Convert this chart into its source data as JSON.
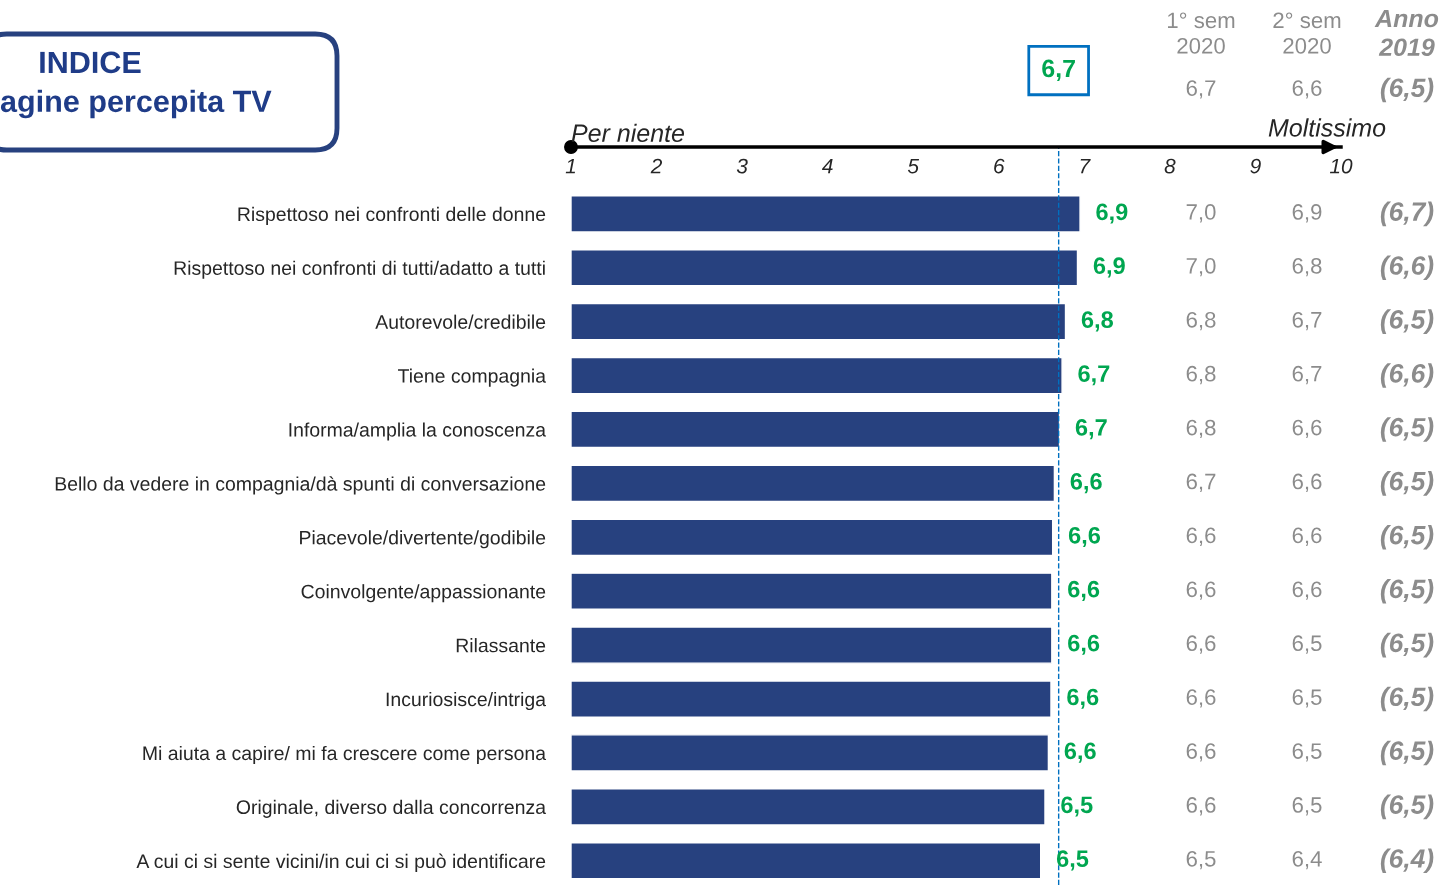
{
  "chart_data": {
    "type": "bar",
    "orientation": "horizontal",
    "title": "INDICE",
    "subtitle": "agine percepita TV",
    "categories": [
      "Rispettoso nei confronti delle donne",
      "Rispettoso nei confronti di tutti/adatto a tutti",
      "Autorevole/credibile",
      "Tiene compagnia",
      "Informa/amplia la conoscenza",
      "Bello da vedere in compagnia/dà spunti di conversazione",
      "Piacevole/divertente/godibile",
      "Coinvolgente/appassionante",
      "Rilassante",
      "Incuriosisce/intriga",
      "Mi aiuta a capire/ mi fa crescere come persona",
      "Originale, diverso dalla concorrenza",
      "A cui ci si sente vicini/in cui ci si può identificare"
    ],
    "series": [
      {
        "color": "#27417f",
        "values": [
          6.95,
          6.92,
          6.78,
          6.74,
          6.71,
          6.65,
          6.63,
          6.62,
          6.62,
          6.61,
          6.58,
          6.54,
          6.49
        ],
        "value_labels": [
          "6,9",
          "6,9",
          "6,8",
          "6,7",
          "6,7",
          "6,6",
          "6,6",
          "6,6",
          "6,6",
          "6,6",
          "6,6",
          "6,5",
          "6,5"
        ]
      }
    ],
    "xlim": [
      1,
      10
    ],
    "xticks": [
      1,
      2,
      3,
      4,
      5,
      6,
      7,
      8,
      9,
      10
    ],
    "grid": false,
    "ref_lines": [
      {
        "axis": "x",
        "value": 6.7,
        "label": "6,7",
        "color": "#0070c0",
        "line_style": "dashed"
      }
    ],
    "annotations": [
      "Per niente",
      "Moltissimo",
      "1° sem\n2020",
      "2° sem\n2020",
      "Anno\n2019",
      "6,7",
      "6,6",
      "(6,5)",
      "7,0",
      "6,9",
      "(6,7)",
      "7,0",
      "6,8",
      "(6,6)",
      "6,8",
      "6,7",
      "(6,5)",
      "6,8",
      "6,7",
      "(6,6)",
      "6,8",
      "6,6",
      "(6,5)",
      "6,7",
      "6,6",
      "(6,5)",
      "6,6",
      "6,6",
      "(6,5)",
      "6,6",
      "6,6",
      "(6,5)",
      "6,6",
      "6,5",
      "(6,5)",
      "6,6",
      "6,5",
      "(6,5)",
      "6,6",
      "6,5",
      "(6,5)",
      "6,6",
      "6,5",
      "(6,5)",
      "6,5",
      "6,4",
      "(6,4)"
    ]
  }
}
